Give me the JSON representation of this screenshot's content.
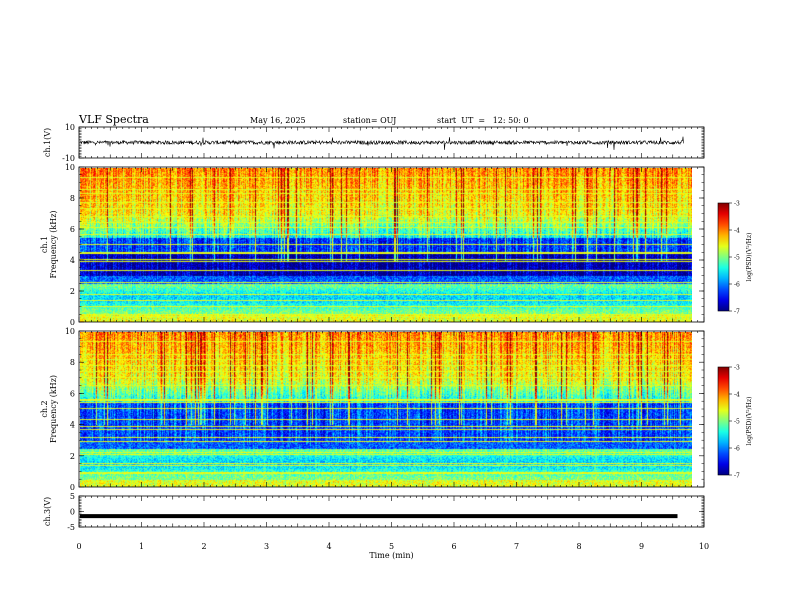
{
  "header": {
    "title": "VLF Spectra",
    "date": "May 16, 2025",
    "station": "station= OUJ",
    "start": "start  UT  =   12: 50: 0"
  },
  "chart_data": [
    {
      "type": "line",
      "ylabel": "ch.1(V)",
      "ylim": [
        -10,
        10
      ],
      "yticks": [
        "10",
        "-10"
      ],
      "xlim": [
        0,
        10
      ],
      "signal": {
        "baseline": 0,
        "noise_amplitude": 1.2
      }
    },
    {
      "type": "heatmap",
      "ylabel": "ch.1\nFrequency (kHz)",
      "ylim": [
        0,
        10
      ],
      "yticks": [
        "0",
        "2",
        "4",
        "6",
        "8",
        "10"
      ],
      "xlim": [
        0,
        10
      ],
      "data_x_end": 9.8,
      "colorbar": {
        "label": "log(PSD)(V²/Hz)",
        "range": [
          -7,
          -3
        ],
        "ticks": [
          "-3",
          "-4",
          "-5",
          "-6",
          "-7"
        ]
      }
    },
    {
      "type": "heatmap",
      "ylabel": "ch.2\nFrequency (kHz)",
      "ylim": [
        0,
        10
      ],
      "yticks": [
        "0",
        "2",
        "4",
        "6",
        "8",
        "10"
      ],
      "xlim": [
        0,
        10
      ],
      "data_x_end": 9.8,
      "colorbar": {
        "label": "log(PSD)(V²/Hz)",
        "range": [
          -7,
          -3
        ],
        "ticks": [
          "-3",
          "-4",
          "-5",
          "-6",
          "-7"
        ]
      }
    },
    {
      "type": "line",
      "ylabel": "ch.3(V)",
      "ylim": [
        -5,
        5
      ],
      "yticks": [
        "5",
        "0",
        "-5"
      ],
      "xlim": [
        0,
        10
      ],
      "xlabel": "Time (min)",
      "xticks": [
        "0",
        "1",
        "2",
        "3",
        "4",
        "5",
        "6",
        "7",
        "8",
        "9",
        "10"
      ],
      "signal": {
        "baseline": -1.5,
        "noise_amplitude": 0
      }
    }
  ]
}
